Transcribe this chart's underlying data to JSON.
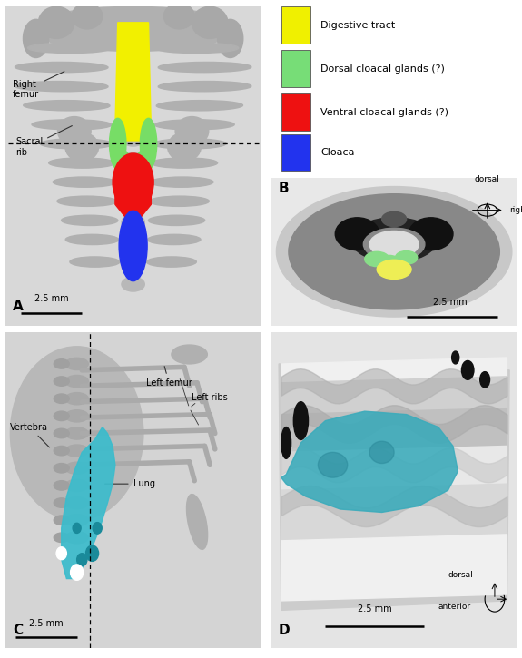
{
  "figure_bg": "#ffffff",
  "legend_items": [
    {
      "color": "#f0f000",
      "label": "Digestive tract"
    },
    {
      "color": "#77dd77",
      "label": "Dorsal cloacal glands (?)"
    },
    {
      "color": "#ee1111",
      "label": "Ventral cloacal glands (?)"
    },
    {
      "color": "#2233ee",
      "label": "Cloaca"
    }
  ],
  "panel_A_bg": "#d0d0d0",
  "panel_B_bg": "#e0e0e0",
  "panel_C_bg": "#d4d4d4",
  "panel_D_bg": "#e2e2e2",
  "scalebar": "2.5 mm",
  "compass_B": {
    "lines": [
      [
        "dorsal",
        "right"
      ]
    ]
  },
  "compass_D": {
    "lines": [
      [
        "dorsal",
        "anterior"
      ]
    ]
  }
}
